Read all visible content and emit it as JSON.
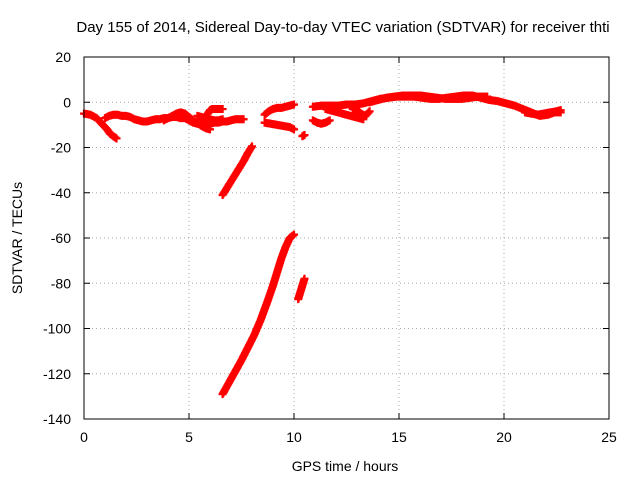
{
  "chart_data": {
    "type": "scatter",
    "title": "Day 155 of 2014, Sidereal Day-to-day VTEC variation (SDTVAR) for receiver thti",
    "xlabel": "GPS time / hours",
    "ylabel": "SDTVAR / TECUs",
    "xlim": [
      0,
      25
    ],
    "ylim": [
      -140,
      20
    ],
    "xticks": [
      0,
      5,
      10,
      15,
      20,
      25
    ],
    "yticks": [
      -140,
      -120,
      -100,
      -80,
      -60,
      -40,
      -20,
      0,
      20
    ],
    "grid": true,
    "marker": "plus",
    "color": "#ff0000",
    "series": [
      {
        "name": "seg1",
        "x": [
          0,
          0.3,
          0.6,
          0.9,
          1.1,
          1.25,
          1.4,
          1.55
        ],
        "y": [
          -5,
          -5.5,
          -7,
          -10,
          -12,
          -14,
          -15,
          -16
        ]
      },
      {
        "name": "seg2",
        "x": [
          1.0,
          1.2,
          1.4,
          1.6,
          1.8,
          2.0,
          2.2,
          2.4,
          2.6,
          2.8,
          3.0,
          3.2,
          3.4,
          3.6,
          3.8,
          4.0,
          4.2,
          4.4,
          4.6,
          4.8,
          5.0,
          5.2,
          5.4,
          5.6,
          5.8,
          6.0,
          6.2,
          6.4,
          6.6,
          6.8,
          7.0,
          7.2,
          7.4,
          7.6
        ],
        "y": [
          -7,
          -6,
          -5.5,
          -5.5,
          -6,
          -6,
          -6.5,
          -7.5,
          -8,
          -8.5,
          -8.5,
          -8,
          -7.5,
          -7.5,
          -7,
          -7,
          -6.5,
          -6.5,
          -7,
          -7,
          -8,
          -9,
          -9.5,
          -10,
          -10,
          -9.5,
          -9,
          -9,
          -8.5,
          -8.5,
          -8,
          -7.5,
          -7.5,
          -7.5
        ]
      },
      {
        "name": "seg3",
        "x": [
          3.8,
          4.0,
          4.2,
          4.4,
          4.6,
          4.8,
          5.0,
          5.2,
          5.4,
          5.6,
          5.8,
          6.0
        ],
        "y": [
          -8,
          -7,
          -6,
          -5,
          -4.5,
          -5,
          -6.5,
          -8,
          -9,
          -10.5,
          -11.5,
          -12
        ]
      },
      {
        "name": "seg4",
        "x": [
          5.4,
          5.6,
          5.8,
          6.0,
          6.2,
          6.4,
          6.6
        ],
        "y": [
          -6,
          -6.5,
          -7,
          -7.5,
          -8,
          -8,
          -7.5
        ]
      },
      {
        "name": "seg5",
        "x": [
          5.9,
          6.0,
          6.1,
          6.2,
          6.4,
          6.6
        ],
        "y": [
          -5,
          -3.5,
          -3,
          -3,
          -3,
          -3
        ]
      },
      {
        "name": "seg6",
        "x": [
          6.6,
          6.8,
          7.0,
          7.2,
          7.4,
          7.6,
          7.8,
          8.0
        ],
        "y": [
          -41,
          -38,
          -35,
          -32,
          -29,
          -26,
          -22.5,
          -19.5
        ]
      },
      {
        "name": "seg7",
        "x": [
          6.6,
          6.9,
          7.2,
          7.5,
          7.8,
          8.1,
          8.4,
          8.7,
          9.0,
          9.2,
          9.4,
          9.6,
          9.8,
          10.0
        ],
        "y": [
          -129,
          -124,
          -119,
          -114,
          -108.5,
          -103,
          -96.5,
          -89,
          -81,
          -75,
          -69,
          -64,
          -60,
          -58.5
        ]
      },
      {
        "name": "seg8",
        "x": [
          8.6,
          8.8,
          9.0,
          9.2,
          9.4,
          9.6,
          9.8,
          10.0
        ],
        "y": [
          -5.5,
          -4,
          -3,
          -2.5,
          -2.5,
          -2,
          -1.5,
          -1
        ]
      },
      {
        "name": "seg9",
        "x": [
          8.6,
          8.9,
          9.2,
          9.5,
          9.8,
          10.0
        ],
        "y": [
          -9,
          -9.5,
          -10,
          -10.5,
          -11,
          -12
        ]
      },
      {
        "name": "seg10",
        "x": [
          10.2,
          10.3,
          10.4,
          10.5
        ],
        "y": [
          -87,
          -84,
          -81,
          -78
        ]
      },
      {
        "name": "seg11",
        "x": [
          10.4,
          10.5
        ],
        "y": [
          -15,
          -14.5
        ]
      },
      {
        "name": "seg12",
        "x": [
          10.9,
          11.1,
          11.3,
          11.5,
          11.7
        ],
        "y": [
          -8,
          -9,
          -9.5,
          -9,
          -8
        ]
      },
      {
        "name": "seg13",
        "x": [
          10.9,
          11.3,
          11.7,
          12.1,
          12.5,
          12.9,
          13.3,
          13.7,
          14.1,
          14.5,
          14.9,
          15.3,
          15.7,
          16.1,
          16.5,
          16.9,
          17.3,
          17.7,
          18.1,
          18.5,
          18.9,
          19.3,
          19.7,
          20.1,
          20.5,
          20.9,
          21.3,
          21.7,
          22.1,
          22.4,
          22.7
        ],
        "y": [
          -2,
          -1.5,
          -1.5,
          -1.5,
          -1,
          -1,
          -0.5,
          0.5,
          1.5,
          2,
          2.5,
          2.5,
          2.5,
          2,
          1.5,
          1.5,
          2,
          2.5,
          3,
          3,
          2,
          1,
          0.5,
          -0.5,
          -1.5,
          -3,
          -4.5,
          -6,
          -5.5,
          -4.5,
          -4.5
        ]
      },
      {
        "name": "seg14",
        "x": [
          11.5,
          11.7,
          11.9,
          12.1,
          12.3,
          12.5,
          12.7,
          12.9,
          13.1,
          13.3
        ],
        "y": [
          -3,
          -3.5,
          -4,
          -4.5,
          -5,
          -5.5,
          -6,
          -6.5,
          -7,
          -7.5
        ]
      },
      {
        "name": "seg15",
        "x": [
          12.8,
          13.0,
          13.2,
          13.4,
          13.6
        ],
        "y": [
          -3,
          -3.5,
          -5,
          -6,
          -4
        ]
      },
      {
        "name": "seg16",
        "x": [
          13.6,
          14.0,
          14.4,
          14.8,
          15.2,
          15.6,
          16.0,
          16.4,
          16.8,
          17.2,
          17.6,
          18.0,
          18.4,
          18.8,
          19.2
        ],
        "y": [
          0,
          1,
          2,
          2.5,
          3,
          3,
          3,
          2.5,
          2,
          1.5,
          1.5,
          1.5,
          2,
          2.5,
          2.5
        ]
      },
      {
        "name": "seg17",
        "x": [
          21.0,
          21.3,
          21.6,
          21.9,
          22.2,
          22.5,
          22.7
        ],
        "y": [
          -4.5,
          -5,
          -5.5,
          -5,
          -4.5,
          -4,
          -3.5
        ]
      }
    ]
  }
}
